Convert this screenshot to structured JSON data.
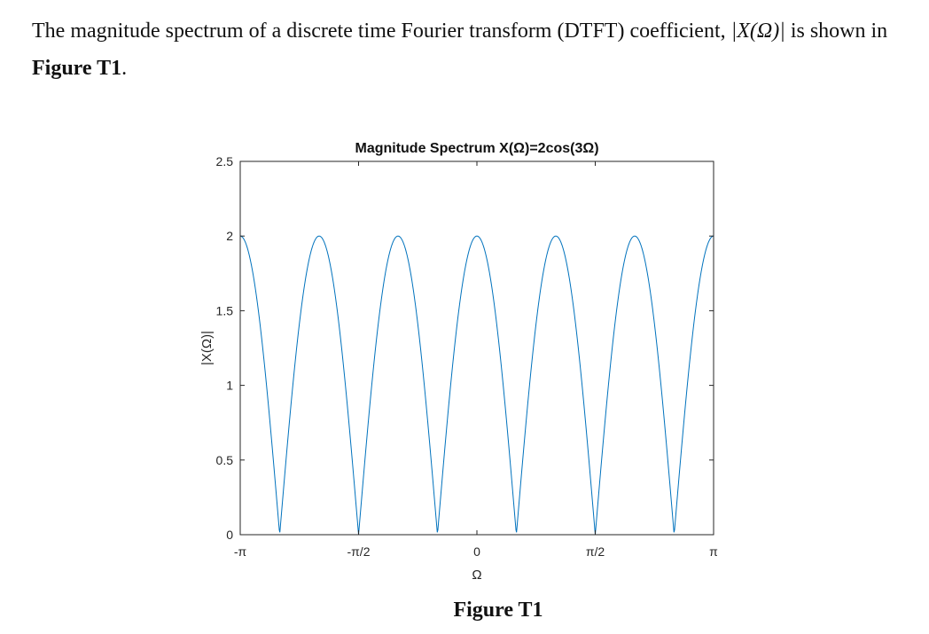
{
  "intro": {
    "text_before": "The magnitude spectrum of a discrete time Fourier transform (DTFT) coefficient, ",
    "math": "|X(Ω)|",
    "text_after": " is shown in ",
    "figure_ref": "Figure T1",
    "end": "."
  },
  "caption": "Figure T1",
  "chart_data": {
    "type": "line",
    "title": "Magnitude Spectrum X(Ω)=2cos(3Ω)",
    "xlabel": "Ω",
    "ylabel": "|X(Ω)|",
    "function": "|2cos(3Ω)|",
    "xlim": [
      -3.14159,
      3.14159
    ],
    "ylim": [
      0,
      2.5
    ],
    "xticks": [
      -3.14159,
      -1.5708,
      0,
      1.5708,
      3.14159
    ],
    "xtick_labels": [
      "-π",
      "-π/2",
      "0",
      "π/2",
      "π"
    ],
    "yticks": [
      0,
      0.5,
      1,
      1.5,
      2,
      2.5
    ],
    "ytick_labels": [
      "0",
      "0.5",
      "1",
      "1.5",
      "2",
      "2.5"
    ],
    "grid": false,
    "line_color": "#0072BD",
    "key_points": {
      "x": [
        -3.14159,
        -2.618,
        -2.0944,
        -1.5708,
        -1.0472,
        -0.5236,
        0,
        0.5236,
        1.0472,
        1.5708,
        2.0944,
        2.618,
        3.14159
      ],
      "y": [
        2,
        0,
        2,
        0,
        2,
        0,
        2,
        0,
        2,
        0,
        2,
        0,
        2
      ]
    }
  }
}
